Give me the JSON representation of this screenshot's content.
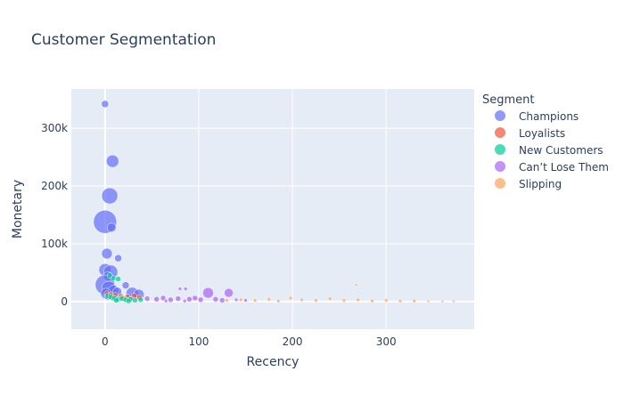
{
  "chart_data": {
    "type": "scatter",
    "title": "Customer Segmentation",
    "xlabel": "Recency",
    "ylabel": "Monetary",
    "xlim": [
      -36,
      394
    ],
    "ylim": [
      -48000,
      368000
    ],
    "x_ticks": [
      0,
      100,
      200,
      300
    ],
    "x_tick_labels": [
      "0",
      "100",
      "200",
      "300"
    ],
    "y_ticks": [
      0,
      100000,
      200000,
      300000
    ],
    "y_tick_labels": [
      "0",
      "100k",
      "200k",
      "300k"
    ],
    "grid": true,
    "legend": {
      "title": "Segment",
      "placement": "right"
    },
    "series": [
      {
        "name": "Champions",
        "color": "#636efa",
        "points": [
          {
            "x": 0,
            "y": 342000,
            "s": 4
          },
          {
            "x": 8,
            "y": 243000,
            "s": 7
          },
          {
            "x": 5,
            "y": 183000,
            "s": 9
          },
          {
            "x": 0,
            "y": 138000,
            "s": 13
          },
          {
            "x": 7,
            "y": 128000,
            "s": 5
          },
          {
            "x": 2,
            "y": 83000,
            "s": 6
          },
          {
            "x": 14,
            "y": 75000,
            "s": 4
          },
          {
            "x": 0,
            "y": 55000,
            "s": 7
          },
          {
            "x": 6,
            "y": 51000,
            "s": 8
          },
          {
            "x": 3,
            "y": 44000,
            "s": 5
          },
          {
            "x": 0,
            "y": 29000,
            "s": 11
          },
          {
            "x": 4,
            "y": 23000,
            "s": 8
          },
          {
            "x": 9,
            "y": 19000,
            "s": 6
          },
          {
            "x": 13,
            "y": 17000,
            "s": 5
          },
          {
            "x": 1,
            "y": 14000,
            "s": 6
          },
          {
            "x": 22,
            "y": 28000,
            "s": 4
          },
          {
            "x": 29,
            "y": 14000,
            "s": 7
          },
          {
            "x": 36,
            "y": 12000,
            "s": 6
          },
          {
            "x": 3,
            "y": 9000,
            "s": 4
          },
          {
            "x": 10,
            "y": 6000,
            "s": 4
          }
        ]
      },
      {
        "name": "Loyalists",
        "color": "#ef553b",
        "points": [
          {
            "x": 2,
            "y": 14000,
            "s": 3
          },
          {
            "x": 6,
            "y": 12000,
            "s": 3
          },
          {
            "x": 11,
            "y": 11000,
            "s": 3
          },
          {
            "x": 17,
            "y": 9000,
            "s": 3
          },
          {
            "x": 24,
            "y": 8000,
            "s": 3
          },
          {
            "x": 31,
            "y": 10000,
            "s": 3
          },
          {
            "x": 37,
            "y": 7000,
            "s": 3
          },
          {
            "x": 8,
            "y": 6000,
            "s": 3
          },
          {
            "x": 20,
            "y": 5000,
            "s": 3
          },
          {
            "x": 28,
            "y": 4000,
            "s": 3
          }
        ]
      },
      {
        "name": "New Customers",
        "color": "#00cc96",
        "points": [
          {
            "x": 5,
            "y": 45000,
            "s": 3
          },
          {
            "x": 9,
            "y": 40000,
            "s": 3
          },
          {
            "x": 14,
            "y": 39000,
            "s": 3
          },
          {
            "x": 3,
            "y": 10000,
            "s": 3
          },
          {
            "x": 6,
            "y": 8000,
            "s": 3
          },
          {
            "x": 10,
            "y": 6000,
            "s": 3
          },
          {
            "x": 14,
            "y": 4000,
            "s": 3
          },
          {
            "x": 18,
            "y": 5000,
            "s": 3
          },
          {
            "x": 22,
            "y": 3000,
            "s": 3
          },
          {
            "x": 27,
            "y": 4000,
            "s": 3
          },
          {
            "x": 32,
            "y": 2000,
            "s": 3
          },
          {
            "x": 38,
            "y": 3000,
            "s": 3
          },
          {
            "x": 12,
            "y": 2000,
            "s": 3
          },
          {
            "x": 25,
            "y": 1000,
            "s": 3
          }
        ]
      },
      {
        "name": "Can’t Lose Them",
        "color": "#ab63fa",
        "points": [
          {
            "x": 110,
            "y": 15000,
            "s": 6
          },
          {
            "x": 132,
            "y": 15000,
            "s": 5
          },
          {
            "x": 80,
            "y": 22000,
            "s": 2
          },
          {
            "x": 86,
            "y": 22000,
            "s": 2
          },
          {
            "x": 45,
            "y": 5000,
            "s": 3
          },
          {
            "x": 55,
            "y": 4000,
            "s": 3
          },
          {
            "x": 62,
            "y": 6000,
            "s": 3
          },
          {
            "x": 70,
            "y": 3000,
            "s": 3
          },
          {
            "x": 78,
            "y": 5000,
            "s": 3
          },
          {
            "x": 90,
            "y": 4000,
            "s": 3
          },
          {
            "x": 96,
            "y": 6000,
            "s": 3
          },
          {
            "x": 102,
            "y": 3000,
            "s": 3
          },
          {
            "x": 118,
            "y": 4000,
            "s": 3
          },
          {
            "x": 125,
            "y": 2000,
            "s": 3
          },
          {
            "x": 140,
            "y": 3000,
            "s": 2
          },
          {
            "x": 150,
            "y": 2000,
            "s": 2
          },
          {
            "x": 65,
            "y": 1000,
            "s": 2
          },
          {
            "x": 85,
            "y": 1000,
            "s": 2
          }
        ]
      },
      {
        "name": "Slipping",
        "color": "#ffa15a",
        "points": [
          {
            "x": 268,
            "y": 29000,
            "s": 1.5
          },
          {
            "x": 130,
            "y": 2000,
            "s": 2
          },
          {
            "x": 145,
            "y": 3000,
            "s": 2
          },
          {
            "x": 160,
            "y": 2000,
            "s": 2
          },
          {
            "x": 175,
            "y": 4000,
            "s": 2
          },
          {
            "x": 185,
            "y": 1000,
            "s": 2
          },
          {
            "x": 198,
            "y": 6000,
            "s": 2
          },
          {
            "x": 210,
            "y": 3000,
            "s": 2
          },
          {
            "x": 225,
            "y": 2000,
            "s": 2
          },
          {
            "x": 240,
            "y": 5000,
            "s": 2
          },
          {
            "x": 255,
            "y": 2000,
            "s": 2
          },
          {
            "x": 270,
            "y": 3000,
            "s": 2
          },
          {
            "x": 285,
            "y": 1000,
            "s": 2
          },
          {
            "x": 300,
            "y": 2000,
            "s": 2
          },
          {
            "x": 315,
            "y": 1000,
            "s": 2
          },
          {
            "x": 330,
            "y": 1000,
            "s": 2
          },
          {
            "x": 345,
            "y": 1000,
            "s": 1.5
          },
          {
            "x": 360,
            "y": 500,
            "s": 1.5
          },
          {
            "x": 372,
            "y": 500,
            "s": 1.5
          }
        ]
      }
    ]
  }
}
